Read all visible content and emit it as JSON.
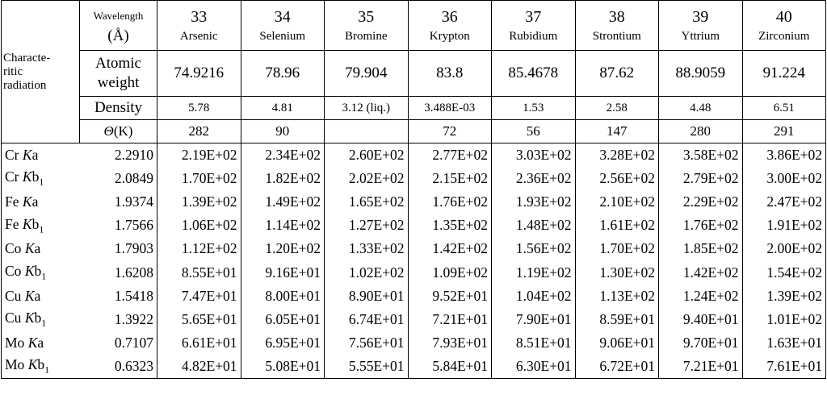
{
  "table": {
    "corner": [
      "Characte-",
      "ritic",
      "radiation"
    ],
    "wavelength_header": {
      "label": "Wavelength",
      "unit": "(Å)"
    },
    "atomic_weight_label": [
      "Atomic",
      "weight"
    ],
    "density_label": "Density",
    "theta_label": {
      "symbol": "Θ",
      "unit": "(K)"
    },
    "elements": [
      {
        "number": 33,
        "name": "Arsenic",
        "atomic_weight": "74.9216",
        "density": "5.78",
        "theta": "282"
      },
      {
        "number": 34,
        "name": "Selenium",
        "atomic_weight": "78.96",
        "density": "4.81",
        "theta": "90"
      },
      {
        "number": 35,
        "name": "Bromine",
        "atomic_weight": "79.904",
        "density": "3.12 (liq.)",
        "theta": null
      },
      {
        "number": 36,
        "name": "Krypton",
        "atomic_weight": "83.8",
        "density": "3.488E-03",
        "theta": "72"
      },
      {
        "number": 37,
        "name": "Rubidium",
        "atomic_weight": "85.4678",
        "density": "1.53",
        "theta": "56"
      },
      {
        "number": 38,
        "name": "Strontium",
        "atomic_weight": "87.62",
        "density": "2.58",
        "theta": "147"
      },
      {
        "number": 39,
        "name": "Yttrium",
        "atomic_weight": "88.9059",
        "density": "4.48",
        "theta": "280"
      },
      {
        "number": 40,
        "name": "Zirconium",
        "atomic_weight": "91.224",
        "density": "6.51",
        "theta": "291"
      }
    ],
    "rows": [
      {
        "anode": "Cr",
        "shell": "K",
        "line": "a",
        "wavelength": "2.2910",
        "values": [
          "2.19E+02",
          "2.34E+02",
          "2.60E+02",
          "2.77E+02",
          "3.03E+02",
          "3.28E+02",
          "3.58E+02",
          "3.86E+02"
        ]
      },
      {
        "anode": "Cr",
        "shell": "K",
        "line": "b",
        "subscript": "1",
        "wavelength": "2.0849",
        "values": [
          "1.70E+02",
          "1.82E+02",
          "2.02E+02",
          "2.15E+02",
          "2.36E+02",
          "2.56E+02",
          "2.79E+02",
          "3.00E+02"
        ]
      },
      {
        "anode": "Fe",
        "shell": "K",
        "line": "a",
        "wavelength": "1.9374",
        "values": [
          "1.39E+02",
          "1.49E+02",
          "1.65E+02",
          "1.76E+02",
          "1.93E+02",
          "2.10E+02",
          "2.29E+02",
          "2.47E+02"
        ]
      },
      {
        "anode": "Fe",
        "shell": "K",
        "line": "b",
        "subscript": "1",
        "wavelength": "1.7566",
        "values": [
          "1.06E+02",
          "1.14E+02",
          "1.27E+02",
          "1.35E+02",
          "1.48E+02",
          "1.61E+02",
          "1.76E+02",
          "1.91E+02"
        ]
      },
      {
        "anode": "Co",
        "shell": "K",
        "line": "a",
        "wavelength": "1.7903",
        "values": [
          "1.12E+02",
          "1.20E+02",
          "1.33E+02",
          "1.42E+02",
          "1.56E+02",
          "1.70E+02",
          "1.85E+02",
          "2.00E+02"
        ]
      },
      {
        "anode": "Co",
        "shell": "K",
        "line": "b",
        "subscript": "1",
        "wavelength": "1.6208",
        "values": [
          "8.55E+01",
          "9.16E+01",
          "1.02E+02",
          "1.09E+02",
          "1.19E+02",
          "1.30E+02",
          "1.42E+02",
          "1.54E+02"
        ]
      },
      {
        "anode": "Cu",
        "shell": "K",
        "line": "a",
        "wavelength": "1.5418",
        "values": [
          "7.47E+01",
          "8.00E+01",
          "8.90E+01",
          "9.52E+01",
          "1.04E+02",
          "1.13E+02",
          "1.24E+02",
          "1.39E+02"
        ]
      },
      {
        "anode": "Cu",
        "shell": "K",
        "line": "b",
        "subscript": "1",
        "wavelength": "1.3922",
        "values": [
          "5.65E+01",
          "6.05E+01",
          "6.74E+01",
          "7.21E+01",
          "7.90E+01",
          "8.59E+01",
          "9.40E+01",
          "1.01E+02"
        ]
      },
      {
        "anode": "Mo",
        "shell": "K",
        "line": "a",
        "wavelength": "0.7107",
        "values": [
          "6.61E+01",
          "6.95E+01",
          "7.56E+01",
          "7.93E+01",
          "8.51E+01",
          "9.06E+01",
          "9.70E+01",
          "1.63E+01"
        ]
      },
      {
        "anode": "Mo",
        "shell": "K",
        "line": "b",
        "subscript": "1",
        "wavelength": "0.6323",
        "values": [
          "4.82E+01",
          "5.08E+01",
          "5.55E+01",
          "5.84E+01",
          "6.30E+01",
          "6.72E+01",
          "7.21E+01",
          "7.61E+01"
        ]
      }
    ]
  }
}
